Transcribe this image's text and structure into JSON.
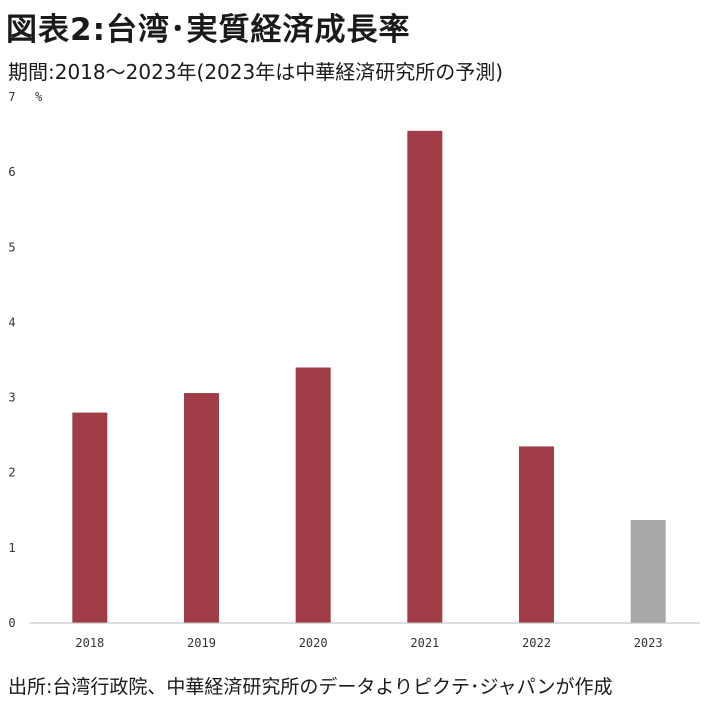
{
  "header": {
    "title": "図表2:台湾･実質経済成長率",
    "subtitle": "期間:2018～2023年(2023年は中華経済研究所の予測)"
  },
  "footer": {
    "source": "出所:台湾行政院、中華経済研究所のデータよりピクテ･ジャパンが作成"
  },
  "chart_data": {
    "type": "bar",
    "categories": [
      "2018",
      "2019",
      "2020",
      "2021",
      "2022",
      "2023"
    ],
    "values": [
      2.8,
      3.06,
      3.4,
      6.55,
      2.35,
      1.37
    ],
    "forecast_index": 5,
    "ylim": [
      0,
      7
    ],
    "yticks": [
      0,
      1,
      2,
      3,
      4,
      5,
      6,
      7
    ],
    "yunit": "%",
    "colors": {
      "actual": "#A13D47",
      "forecast": "#A8A8A8",
      "axis": "#BBBBBB"
    },
    "grid": false,
    "legend": "none"
  }
}
